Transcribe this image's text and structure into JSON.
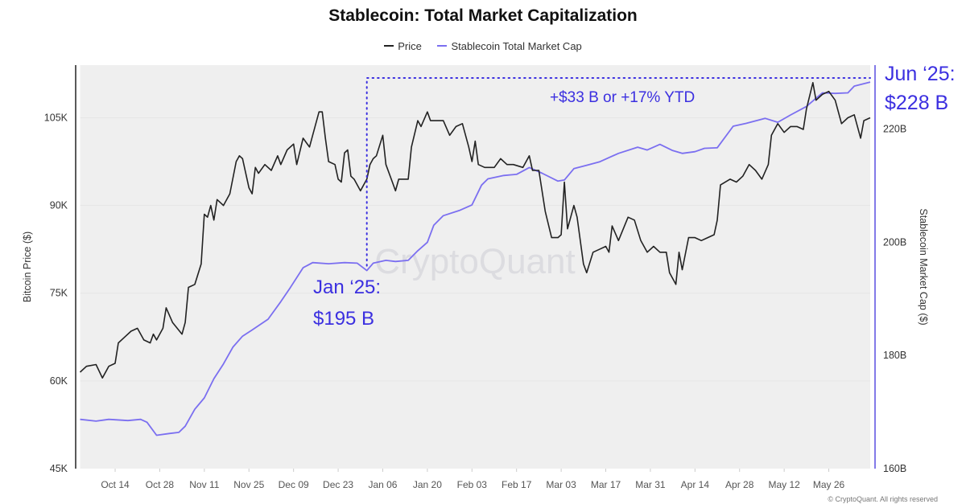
{
  "chart_data": {
    "type": "line",
    "title": "Stablecoin: Total Market Capitalization",
    "legend": [
      "Price",
      "Stablecoin Total Market Cap"
    ],
    "legend_position": "top-center",
    "ylabel_left": "Bitcoin Price ($)",
    "ylabel_right": "Stablecoin Market Cap ($)",
    "ylim_left": [
      45000,
      114000
    ],
    "ylim_right": [
      160,
      231.3
    ],
    "xlim": [
      "2024-10-03",
      "2025-06-08"
    ],
    "left_ticks": [
      {
        "v": 45000,
        "label": "45K"
      },
      {
        "v": 60000,
        "label": "60K"
      },
      {
        "v": 75000,
        "label": "75K"
      },
      {
        "v": 90000,
        "label": "90K"
      },
      {
        "v": 105000,
        "label": "105K"
      }
    ],
    "right_ticks": [
      {
        "v": 160,
        "label": "160B"
      },
      {
        "v": 180,
        "label": "180B"
      },
      {
        "v": 200,
        "label": "200B"
      },
      {
        "v": 220,
        "label": "220B"
      }
    ],
    "x_ticks": [
      {
        "d": "2024-10-14",
        "label": "Oct 14"
      },
      {
        "d": "2024-10-28",
        "label": "Oct 28"
      },
      {
        "d": "2024-11-11",
        "label": "Nov 11"
      },
      {
        "d": "2024-11-25",
        "label": "Nov 25"
      },
      {
        "d": "2024-12-09",
        "label": "Dec 09"
      },
      {
        "d": "2024-12-23",
        "label": "Dec 23"
      },
      {
        "d": "2025-01-06",
        "label": "Jan 06"
      },
      {
        "d": "2025-01-20",
        "label": "Jan 20"
      },
      {
        "d": "2025-02-03",
        "label": "Feb 03"
      },
      {
        "d": "2025-02-17",
        "label": "Feb 17"
      },
      {
        "d": "2025-03-03",
        "label": "Mar 03"
      },
      {
        "d": "2025-03-17",
        "label": "Mar 17"
      },
      {
        "d": "2025-03-31",
        "label": "Mar 31"
      },
      {
        "d": "2025-04-14",
        "label": "Apr 14"
      },
      {
        "d": "2025-04-28",
        "label": "Apr 28"
      },
      {
        "d": "2025-05-12",
        "label": "May 12"
      },
      {
        "d": "2025-05-26",
        "label": "May 26"
      }
    ],
    "series": [
      {
        "name": "Price",
        "axis": "left",
        "color": "#222222",
        "points": [
          [
            "2024-10-03",
            61500
          ],
          [
            "2024-10-05",
            62500
          ],
          [
            "2024-10-08",
            62800
          ],
          [
            "2024-10-10",
            60500
          ],
          [
            "2024-10-12",
            62500
          ],
          [
            "2024-10-14",
            63000
          ],
          [
            "2024-10-15",
            66500
          ],
          [
            "2024-10-17",
            67500
          ],
          [
            "2024-10-19",
            68500
          ],
          [
            "2024-10-21",
            69000
          ],
          [
            "2024-10-23",
            67000
          ],
          [
            "2024-10-25",
            66500
          ],
          [
            "2024-10-26",
            68000
          ],
          [
            "2024-10-27",
            67000
          ],
          [
            "2024-10-29",
            69000
          ],
          [
            "2024-10-30",
            72500
          ],
          [
            "2024-11-01",
            70000
          ],
          [
            "2024-11-04",
            68000
          ],
          [
            "2024-11-05",
            70000
          ],
          [
            "2024-11-06",
            76000
          ],
          [
            "2024-11-08",
            76500
          ],
          [
            "2024-11-10",
            80000
          ],
          [
            "2024-11-11",
            88500
          ],
          [
            "2024-11-12",
            88000
          ],
          [
            "2024-11-13",
            90000
          ],
          [
            "2024-11-14",
            87500
          ],
          [
            "2024-11-15",
            91000
          ],
          [
            "2024-11-17",
            90000
          ],
          [
            "2024-11-19",
            92000
          ],
          [
            "2024-11-21",
            97500
          ],
          [
            "2024-11-22",
            98500
          ],
          [
            "2024-11-23",
            98000
          ],
          [
            "2024-11-25",
            93000
          ],
          [
            "2024-11-26",
            92000
          ],
          [
            "2024-11-27",
            96500
          ],
          [
            "2024-11-28",
            95500
          ],
          [
            "2024-11-30",
            97000
          ],
          [
            "2024-12-02",
            96000
          ],
          [
            "2024-12-04",
            98500
          ],
          [
            "2024-12-05",
            97000
          ],
          [
            "2024-12-07",
            99500
          ],
          [
            "2024-12-09",
            100500
          ],
          [
            "2024-12-10",
            97000
          ],
          [
            "2024-12-12",
            101500
          ],
          [
            "2024-12-14",
            100000
          ],
          [
            "2024-12-15",
            102000
          ],
          [
            "2024-12-17",
            106000
          ],
          [
            "2024-12-18",
            106000
          ],
          [
            "2024-12-19",
            101500
          ],
          [
            "2024-12-20",
            97500
          ],
          [
            "2024-12-22",
            97000
          ],
          [
            "2024-12-23",
            94500
          ],
          [
            "2024-12-24",
            94000
          ],
          [
            "2024-12-25",
            99000
          ],
          [
            "2024-12-26",
            99500
          ],
          [
            "2024-12-27",
            95000
          ],
          [
            "2024-12-28",
            94500
          ],
          [
            "2024-12-30",
            92500
          ],
          [
            "2024-12-31",
            93500
          ],
          [
            "2025-01-01",
            94500
          ],
          [
            "2025-01-02",
            97000
          ],
          [
            "2025-01-03",
            98000
          ],
          [
            "2025-01-04",
            98500
          ],
          [
            "2025-01-06",
            102000
          ],
          [
            "2025-01-07",
            97000
          ],
          [
            "2025-01-09",
            94000
          ],
          [
            "2025-01-10",
            92500
          ],
          [
            "2025-01-11",
            94500
          ],
          [
            "2025-01-14",
            94500
          ],
          [
            "2025-01-15",
            100000
          ],
          [
            "2025-01-17",
            104500
          ],
          [
            "2025-01-18",
            103500
          ],
          [
            "2025-01-20",
            106000
          ],
          [
            "2025-01-21",
            104500
          ],
          [
            "2025-01-23",
            104500
          ],
          [
            "2025-01-25",
            104500
          ],
          [
            "2025-01-27",
            102000
          ],
          [
            "2025-01-29",
            103500
          ],
          [
            "2025-01-31",
            104000
          ],
          [
            "2025-02-02",
            100000
          ],
          [
            "2025-02-03",
            97500
          ],
          [
            "2025-02-04",
            101000
          ],
          [
            "2025-02-05",
            97000
          ],
          [
            "2025-02-07",
            96500
          ],
          [
            "2025-02-10",
            96500
          ],
          [
            "2025-02-12",
            98000
          ],
          [
            "2025-02-14",
            97000
          ],
          [
            "2025-02-16",
            97000
          ],
          [
            "2025-02-19",
            96500
          ],
          [
            "2025-02-21",
            98500
          ],
          [
            "2025-02-22",
            96000
          ],
          [
            "2025-02-24",
            96000
          ],
          [
            "2025-02-26",
            89000
          ],
          [
            "2025-02-28",
            84500
          ],
          [
            "2025-03-02",
            84500
          ],
          [
            "2025-03-03",
            85000
          ],
          [
            "2025-03-04",
            94000
          ],
          [
            "2025-03-05",
            86000
          ],
          [
            "2025-03-07",
            90000
          ],
          [
            "2025-03-08",
            88000
          ],
          [
            "2025-03-10",
            80000
          ],
          [
            "2025-03-11",
            78500
          ],
          [
            "2025-03-13",
            82000
          ],
          [
            "2025-03-15",
            82500
          ],
          [
            "2025-03-17",
            83000
          ],
          [
            "2025-03-18",
            82000
          ],
          [
            "2025-03-19",
            86500
          ],
          [
            "2025-03-21",
            84000
          ],
          [
            "2025-03-24",
            88000
          ],
          [
            "2025-03-26",
            87500
          ],
          [
            "2025-03-28",
            84000
          ],
          [
            "2025-03-30",
            82000
          ],
          [
            "2025-04-01",
            83000
          ],
          [
            "2025-04-03",
            82000
          ],
          [
            "2025-04-05",
            82000
          ],
          [
            "2025-04-06",
            78500
          ],
          [
            "2025-04-08",
            76500
          ],
          [
            "2025-04-09",
            82000
          ],
          [
            "2025-04-10",
            79000
          ],
          [
            "2025-04-12",
            84500
          ],
          [
            "2025-04-14",
            84500
          ],
          [
            "2025-04-16",
            84000
          ],
          [
            "2025-04-18",
            84500
          ],
          [
            "2025-04-20",
            85000
          ],
          [
            "2025-04-21",
            87500
          ],
          [
            "2025-04-22",
            93500
          ],
          [
            "2025-04-25",
            94500
          ],
          [
            "2025-04-27",
            94000
          ],
          [
            "2025-04-29",
            95000
          ],
          [
            "2025-05-01",
            97000
          ],
          [
            "2025-05-03",
            96000
          ],
          [
            "2025-05-05",
            94500
          ],
          [
            "2025-05-07",
            97000
          ],
          [
            "2025-05-08",
            102000
          ],
          [
            "2025-05-10",
            104000
          ],
          [
            "2025-05-12",
            102500
          ],
          [
            "2025-05-14",
            103500
          ],
          [
            "2025-05-16",
            103500
          ],
          [
            "2025-05-18",
            103000
          ],
          [
            "2025-05-19",
            106500
          ],
          [
            "2025-05-21",
            111000
          ],
          [
            "2025-05-22",
            108000
          ],
          [
            "2025-05-24",
            109000
          ],
          [
            "2025-05-26",
            109500
          ],
          [
            "2025-05-28",
            108000
          ],
          [
            "2025-05-30",
            104000
          ],
          [
            "2025-06-01",
            105000
          ],
          [
            "2025-06-03",
            105500
          ],
          [
            "2025-06-05",
            101500
          ],
          [
            "2025-06-06",
            104500
          ],
          [
            "2025-06-08",
            105000
          ]
        ]
      },
      {
        "name": "Stablecoin Total Market Cap",
        "axis": "right",
        "color": "#7b6ff0",
        "points": [
          [
            "2024-10-03",
            168.7
          ],
          [
            "2024-10-08",
            168.4
          ],
          [
            "2024-10-12",
            168.7
          ],
          [
            "2024-10-18",
            168.5
          ],
          [
            "2024-10-22",
            168.7
          ],
          [
            "2024-10-24",
            168.2
          ],
          [
            "2024-10-27",
            165.9
          ],
          [
            "2024-10-31",
            166.2
          ],
          [
            "2024-11-03",
            166.4
          ],
          [
            "2024-11-05",
            167.5
          ],
          [
            "2024-11-08",
            170.5
          ],
          [
            "2024-11-11",
            172.5
          ],
          [
            "2024-11-14",
            175.9
          ],
          [
            "2024-11-17",
            178.5
          ],
          [
            "2024-11-20",
            181.5
          ],
          [
            "2024-11-23",
            183.4
          ],
          [
            "2024-11-26",
            184.5
          ],
          [
            "2024-12-01",
            186.4
          ],
          [
            "2024-12-05",
            189.5
          ],
          [
            "2024-12-08",
            192
          ],
          [
            "2024-12-12",
            195.5
          ],
          [
            "2024-12-15",
            196.4
          ],
          [
            "2024-12-20",
            196.2
          ],
          [
            "2024-12-25",
            196.4
          ],
          [
            "2024-12-29",
            196.3
          ],
          [
            "2025-01-01",
            195
          ],
          [
            "2025-01-03",
            196.3
          ],
          [
            "2025-01-07",
            196.8
          ],
          [
            "2025-01-10",
            196.6
          ],
          [
            "2025-01-14",
            196.8
          ],
          [
            "2025-01-17",
            198.5
          ],
          [
            "2025-01-20",
            200
          ],
          [
            "2025-01-22",
            203
          ],
          [
            "2025-01-25",
            204.7
          ],
          [
            "2025-01-30",
            205.6
          ],
          [
            "2025-02-03",
            206.6
          ],
          [
            "2025-02-06",
            210.1
          ],
          [
            "2025-02-08",
            211.2
          ],
          [
            "2025-02-13",
            211.8
          ],
          [
            "2025-02-17",
            212
          ],
          [
            "2025-02-21",
            213.2
          ],
          [
            "2025-02-25",
            212.2
          ],
          [
            "2025-03-02",
            210.8
          ],
          [
            "2025-03-04",
            211
          ],
          [
            "2025-03-07",
            213
          ],
          [
            "2025-03-11",
            213.6
          ],
          [
            "2025-03-15",
            214.2
          ],
          [
            "2025-03-21",
            215.7
          ],
          [
            "2025-03-27",
            216.8
          ],
          [
            "2025-03-30",
            216.3
          ],
          [
            "2025-04-03",
            217.3
          ],
          [
            "2025-04-07",
            216.2
          ],
          [
            "2025-04-10",
            215.7
          ],
          [
            "2025-04-14",
            216
          ],
          [
            "2025-04-17",
            216.6
          ],
          [
            "2025-04-21",
            216.7
          ],
          [
            "2025-04-26",
            220.5
          ],
          [
            "2025-04-30",
            221
          ],
          [
            "2025-05-06",
            221.9
          ],
          [
            "2025-05-10",
            221.2
          ],
          [
            "2025-05-14",
            222.5
          ],
          [
            "2025-05-19",
            224
          ],
          [
            "2025-05-24",
            226.4
          ],
          [
            "2025-05-28",
            226.3
          ],
          [
            "2025-06-01",
            226.4
          ],
          [
            "2025-06-03",
            227.6
          ],
          [
            "2025-06-08",
            228.3
          ]
        ]
      }
    ],
    "annotations": {
      "start_line1": "Jan ‘25:",
      "start_line2": "$195 B",
      "end_line1": "Jun ‘25:",
      "end_line2": "$228 B",
      "change": "+$33 B or +17% YTD",
      "color": "#3b2fe0"
    },
    "watermark": "CryptoQuant",
    "copyright": "© CryptoQuant. All rights reserved"
  }
}
